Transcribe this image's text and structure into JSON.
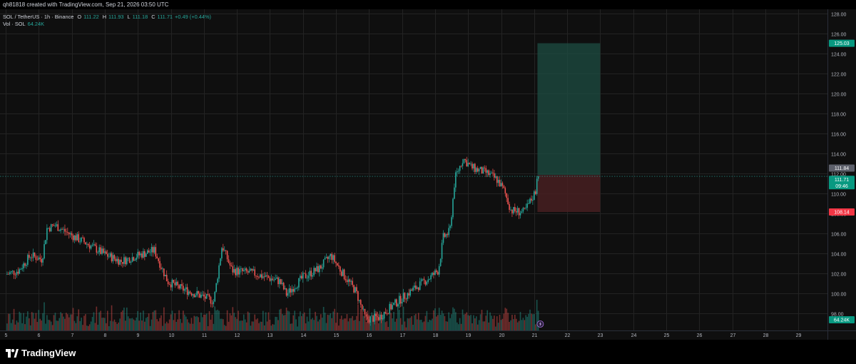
{
  "header": {
    "created_text": "qh81818 created with TradingView.com, Sep 21, 2026 03:50 UTC"
  },
  "legend": {
    "symbol": "SOL / TetherUS · 1h · Binance",
    "o_label": "O",
    "o_value": "111.22",
    "h_label": "H",
    "h_value": "111.93",
    "l_label": "L",
    "l_value": "111.18",
    "c_label": "C",
    "c_value": "111.71",
    "change": "+0.49 (+0.44%)",
    "vol_label": "Vol · SOL",
    "vol_value": "64.24K"
  },
  "brand": {
    "name": "TradingView"
  },
  "colors": {
    "up": "#26a69a",
    "down": "#ef5350",
    "target": "#1e4d43",
    "stop": "#4a1f22"
  },
  "chart_data": {
    "type": "candlestick",
    "symbol": "SOL / TetherUS",
    "interval": "1h",
    "exchange": "Binance",
    "x_tick_labels": [
      "5",
      "6",
      "7",
      "8",
      "9",
      "10",
      "11",
      "12",
      "13",
      "14",
      "15",
      "16",
      "17",
      "18",
      "19",
      "20",
      "21",
      "22",
      "23",
      "24",
      "25",
      "26",
      "27",
      "28",
      "29"
    ],
    "y_tick_labels": [
      "128.00",
      "126.00",
      "124.00",
      "122.00",
      "120.00",
      "118.00",
      "116.00",
      "114.00",
      "112.00",
      "110.00",
      "108.00",
      "106.00",
      "104.00",
      "102.00",
      "100.00",
      "98.00"
    ],
    "ylim": [
      97,
      128.5
    ],
    "grid": true,
    "close_path": [
      {
        "day": 5.0,
        "price": 101.9
      },
      {
        "day": 5.4,
        "price": 102.3
      },
      {
        "day": 5.75,
        "price": 103.8
      },
      {
        "day": 6.1,
        "price": 103.4
      },
      {
        "day": 6.25,
        "price": 106.5
      },
      {
        "day": 6.5,
        "price": 106.8
      },
      {
        "day": 7.0,
        "price": 105.8
      },
      {
        "day": 7.5,
        "price": 104.9
      },
      {
        "day": 8.0,
        "price": 103.9
      },
      {
        "day": 8.5,
        "price": 103.2
      },
      {
        "day": 9.0,
        "price": 103.8
      },
      {
        "day": 9.5,
        "price": 104.3
      },
      {
        "day": 9.9,
        "price": 101.2
      },
      {
        "day": 10.3,
        "price": 100.5
      },
      {
        "day": 10.8,
        "price": 99.9
      },
      {
        "day": 11.3,
        "price": 99.2
      },
      {
        "day": 11.55,
        "price": 104.8
      },
      {
        "day": 11.85,
        "price": 102.3
      },
      {
        "day": 12.5,
        "price": 102.0
      },
      {
        "day": 13.3,
        "price": 101.2
      },
      {
        "day": 13.5,
        "price": 99.9
      },
      {
        "day": 14.0,
        "price": 101.6
      },
      {
        "day": 14.5,
        "price": 102.5
      },
      {
        "day": 14.85,
        "price": 103.8
      },
      {
        "day": 15.2,
        "price": 102.0
      },
      {
        "day": 15.6,
        "price": 100.2
      },
      {
        "day": 15.9,
        "price": 97.4
      },
      {
        "day": 16.3,
        "price": 97.6
      },
      {
        "day": 16.8,
        "price": 99.0
      },
      {
        "day": 17.3,
        "price": 100.3
      },
      {
        "day": 17.85,
        "price": 101.6
      },
      {
        "day": 18.1,
        "price": 102.3
      },
      {
        "day": 18.25,
        "price": 105.6
      },
      {
        "day": 18.45,
        "price": 106.2
      },
      {
        "day": 18.6,
        "price": 111.5
      },
      {
        "day": 18.85,
        "price": 113.5
      },
      {
        "day": 19.1,
        "price": 112.6
      },
      {
        "day": 19.6,
        "price": 112.0
      },
      {
        "day": 19.9,
        "price": 111.3
      },
      {
        "day": 20.1,
        "price": 110.2
      },
      {
        "day": 20.3,
        "price": 108.3
      },
      {
        "day": 20.7,
        "price": 108.1
      },
      {
        "day": 20.95,
        "price": 109.6
      },
      {
        "day": 21.05,
        "price": 110.3
      },
      {
        "day": 21.1,
        "price": 112.4
      },
      {
        "day": 21.15,
        "price": 111.71
      }
    ],
    "last": {
      "price": 111.71,
      "price_label": "111.71",
      "countdown": "09:46"
    },
    "price_labels": {
      "target": "125.03",
      "high_mark": "111.84",
      "stop": "108.14"
    },
    "position": {
      "type": "long",
      "entry": 111.84,
      "target": 125.03,
      "stop": 108.14,
      "from_day": 21.1,
      "to_day": 23.0
    },
    "volume": {
      "last_label": "64.24K"
    }
  }
}
